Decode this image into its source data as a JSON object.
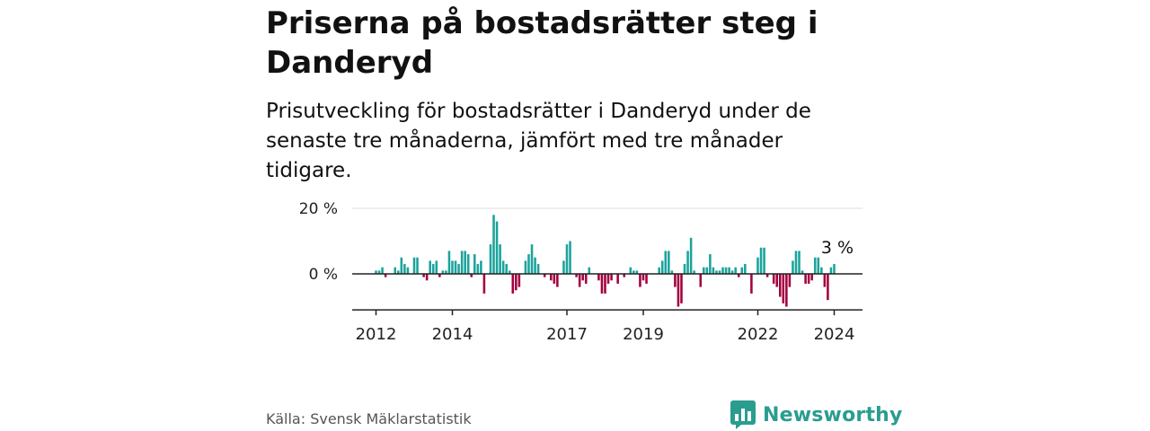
{
  "title": "Priserna på bostadsrätter steg i Danderyd",
  "subtitle": "Prisutveckling för bostadsrätter i Danderyd under de senaste tre månaderna, jämfört med tre månader tidigare.",
  "source": "Källa: Svensk Mäklarstatistik",
  "brand": "Newsworthy",
  "colors": {
    "positive": "#1ba39c",
    "negative": "#a3003f",
    "brand": "#2a9d8f",
    "grid": "#dddddd",
    "axis": "#222222"
  },
  "chart_data": {
    "type": "bar",
    "ylabel": "",
    "xlabel": "",
    "ylim": [
      -11,
      20
    ],
    "yticks": [
      {
        "value": 20,
        "label": "20 %"
      },
      {
        "value": 0,
        "label": "0 %"
      }
    ],
    "xticks": [
      {
        "value": 2012,
        "label": "2012"
      },
      {
        "value": 2014,
        "label": "2014"
      },
      {
        "value": 2017,
        "label": "2017"
      },
      {
        "value": 2019,
        "label": "2019"
      },
      {
        "value": 2022,
        "label": "2022"
      },
      {
        "value": 2024,
        "label": "2024"
      }
    ],
    "x_start": 2012.0,
    "step": 0.08333,
    "annotation": {
      "label": "3 %",
      "value": 3
    },
    "values": [
      1,
      1,
      2,
      -1,
      0,
      0,
      2,
      1,
      5,
      3,
      2,
      0,
      5,
      5,
      0,
      -1,
      -2,
      4,
      3,
      4,
      -1,
      1,
      1,
      7,
      4,
      4,
      3,
      7,
      7,
      6,
      -1,
      6,
      3,
      4,
      -6,
      0,
      9,
      18,
      16,
      9,
      4,
      3,
      1,
      -6,
      -5,
      -4,
      0,
      4,
      6,
      9,
      5,
      3,
      0,
      -1,
      0,
      -2,
      -3,
      -4,
      0,
      4,
      9,
      10,
      0,
      -1,
      -4,
      -2,
      -3,
      2,
      0,
      0,
      -2,
      -6,
      -6,
      -3,
      -2,
      0,
      -3,
      0,
      -1,
      0,
      2,
      1,
      1,
      -4,
      -2,
      -3,
      0,
      0,
      0,
      2,
      4,
      7,
      7,
      1,
      -4,
      -10,
      -9,
      3,
      7,
      11,
      1,
      0,
      -4,
      2,
      2,
      6,
      2,
      1,
      1,
      2,
      2,
      2,
      1,
      2,
      -1,
      2,
      3,
      0,
      -6,
      0,
      5,
      8,
      8,
      -1,
      0,
      -3,
      -4,
      -7,
      -9,
      -10,
      -4,
      4,
      7,
      7,
      1,
      -3,
      -3,
      -2,
      5,
      5,
      2,
      -4,
      -8,
      2,
      3
    ]
  }
}
